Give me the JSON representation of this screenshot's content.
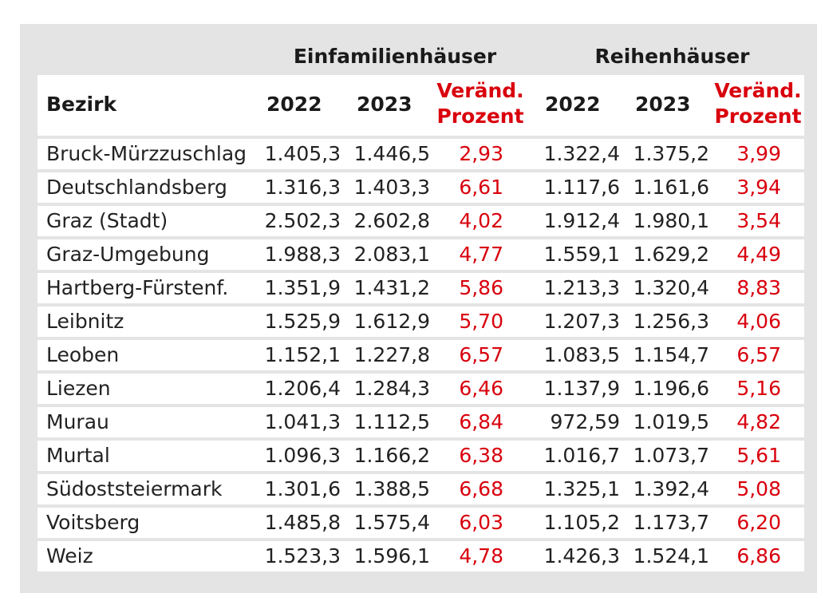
{
  "groups": {
    "einfamilien": "Einfamilienhäuser",
    "reihen": "Reihenhäuser"
  },
  "header": {
    "bezirk": "Bezirk",
    "y2022": "2022",
    "y2023": "2023",
    "change_line1": "Veränd.",
    "change_line2": "Prozent"
  },
  "colors": {
    "accent_red": "#d9000d",
    "panel_grey": "#e4e4e4"
  },
  "rows": [
    {
      "bezirk": "Bruck-Mürzzuschlag",
      "efh_2022": "1.405,3",
      "efh_2023": "1.446,5",
      "efh_pct": "2,93",
      "rh_2022": "1.322,4",
      "rh_2023": "1.375,2",
      "rh_pct": "3,99"
    },
    {
      "bezirk": "Deutschlandsberg",
      "efh_2022": "1.316,3",
      "efh_2023": "1.403,3",
      "efh_pct": "6,61",
      "rh_2022": "1.117,6",
      "rh_2023": "1.161,6",
      "rh_pct": "3,94"
    },
    {
      "bezirk": "Graz (Stadt)",
      "efh_2022": "2.502,3",
      "efh_2023": "2.602,8",
      "efh_pct": "4,02",
      "rh_2022": "1.912,4",
      "rh_2023": "1.980,1",
      "rh_pct": "3,54"
    },
    {
      "bezirk": "Graz-Umgebung",
      "efh_2022": "1.988,3",
      "efh_2023": "2.083,1",
      "efh_pct": "4,77",
      "rh_2022": "1.559,1",
      "rh_2023": "1.629,2",
      "rh_pct": "4,49"
    },
    {
      "bezirk": "Hartberg-Fürstenf.",
      "efh_2022": "1.351,9",
      "efh_2023": "1.431,2",
      "efh_pct": "5,86",
      "rh_2022": "1.213,3",
      "rh_2023": "1.320,4",
      "rh_pct": "8,83"
    },
    {
      "bezirk": "Leibnitz",
      "efh_2022": "1.525,9",
      "efh_2023": "1.612,9",
      "efh_pct": "5,70",
      "rh_2022": "1.207,3",
      "rh_2023": "1.256,3",
      "rh_pct": "4,06"
    },
    {
      "bezirk": "Leoben",
      "efh_2022": "1.152,1",
      "efh_2023": "1.227,8",
      "efh_pct": "6,57",
      "rh_2022": "1.083,5",
      "rh_2023": "1.154,7",
      "rh_pct": "6,57"
    },
    {
      "bezirk": "Liezen",
      "efh_2022": "1.206,4",
      "efh_2023": "1.284,3",
      "efh_pct": "6,46",
      "rh_2022": "1.137,9",
      "rh_2023": "1.196,6",
      "rh_pct": "5,16"
    },
    {
      "bezirk": "Murau",
      "efh_2022": "1.041,3",
      "efh_2023": "1.112,5",
      "efh_pct": "6,84",
      "rh_2022": "972,59",
      "rh_2023": "1.019,5",
      "rh_pct": "4,82"
    },
    {
      "bezirk": "Murtal",
      "efh_2022": "1.096,3",
      "efh_2023": "1.166,2",
      "efh_pct": "6,38",
      "rh_2022": "1.016,7",
      "rh_2023": "1.073,7",
      "rh_pct": "5,61"
    },
    {
      "bezirk": "Südoststeiermark",
      "efh_2022": "1.301,6",
      "efh_2023": "1.388,5",
      "efh_pct": "6,68",
      "rh_2022": "1.325,1",
      "rh_2023": "1.392,4",
      "rh_pct": "5,08"
    },
    {
      "bezirk": "Voitsberg",
      "efh_2022": "1.485,8",
      "efh_2023": "1.575,4",
      "efh_pct": "6,03",
      "rh_2022": "1.105,2",
      "rh_2023": "1.173,7",
      "rh_pct": "6,20"
    },
    {
      "bezirk": "Weiz",
      "efh_2022": "1.523,3",
      "efh_2023": "1.596,1",
      "efh_pct": "4,78",
      "rh_2022": "1.426,3",
      "rh_2023": "1.524,1",
      "rh_pct": "6,86"
    }
  ]
}
